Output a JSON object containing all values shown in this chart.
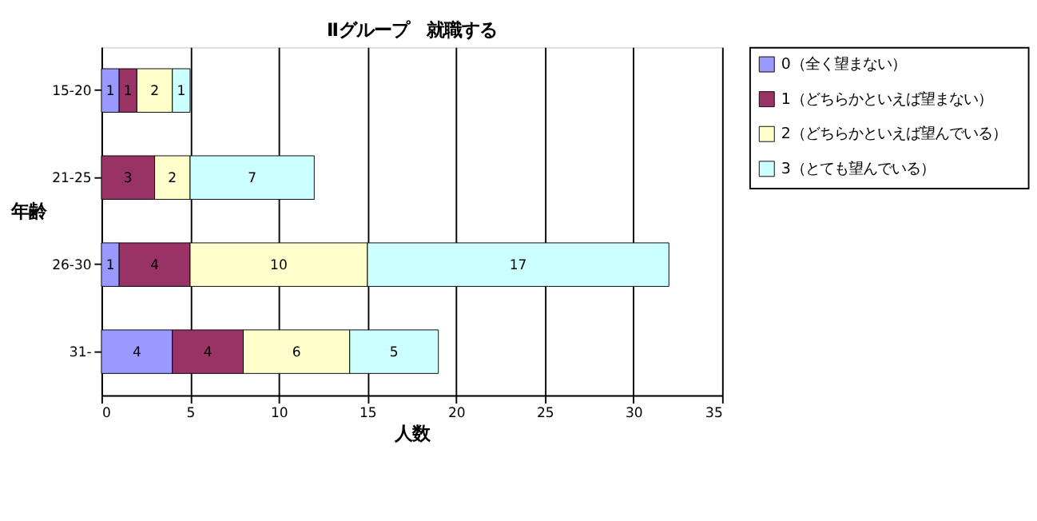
{
  "chart_data": {
    "type": "bar",
    "orientation": "horizontal",
    "stacked": true,
    "title": "Ⅱグループ　就職する",
    "xlabel": "人数",
    "ylabel": "年齢",
    "categories": [
      "15-20",
      "21-25",
      "26-30",
      "31-"
    ],
    "series": [
      {
        "name": "0（全く望まない）",
        "color": "#9999ff",
        "values": [
          1,
          null,
          1,
          4
        ]
      },
      {
        "name": "1（どちらかといえば望まない）",
        "color": "#993366",
        "values": [
          1,
          3,
          4,
          4
        ]
      },
      {
        "name": "2（どちらかといえば望んでいる）",
        "color": "#ffffcc",
        "values": [
          2,
          2,
          10,
          6
        ]
      },
      {
        "name": "3（とても望んでいる）",
        "color": "#ccffff",
        "values": [
          1,
          7,
          17,
          5
        ]
      }
    ],
    "xlim": [
      0,
      35
    ],
    "xticks": [
      0,
      5,
      10,
      15,
      20,
      25,
      30,
      35
    ],
    "grid": "x",
    "legend": "right",
    "data_labels": true
  }
}
